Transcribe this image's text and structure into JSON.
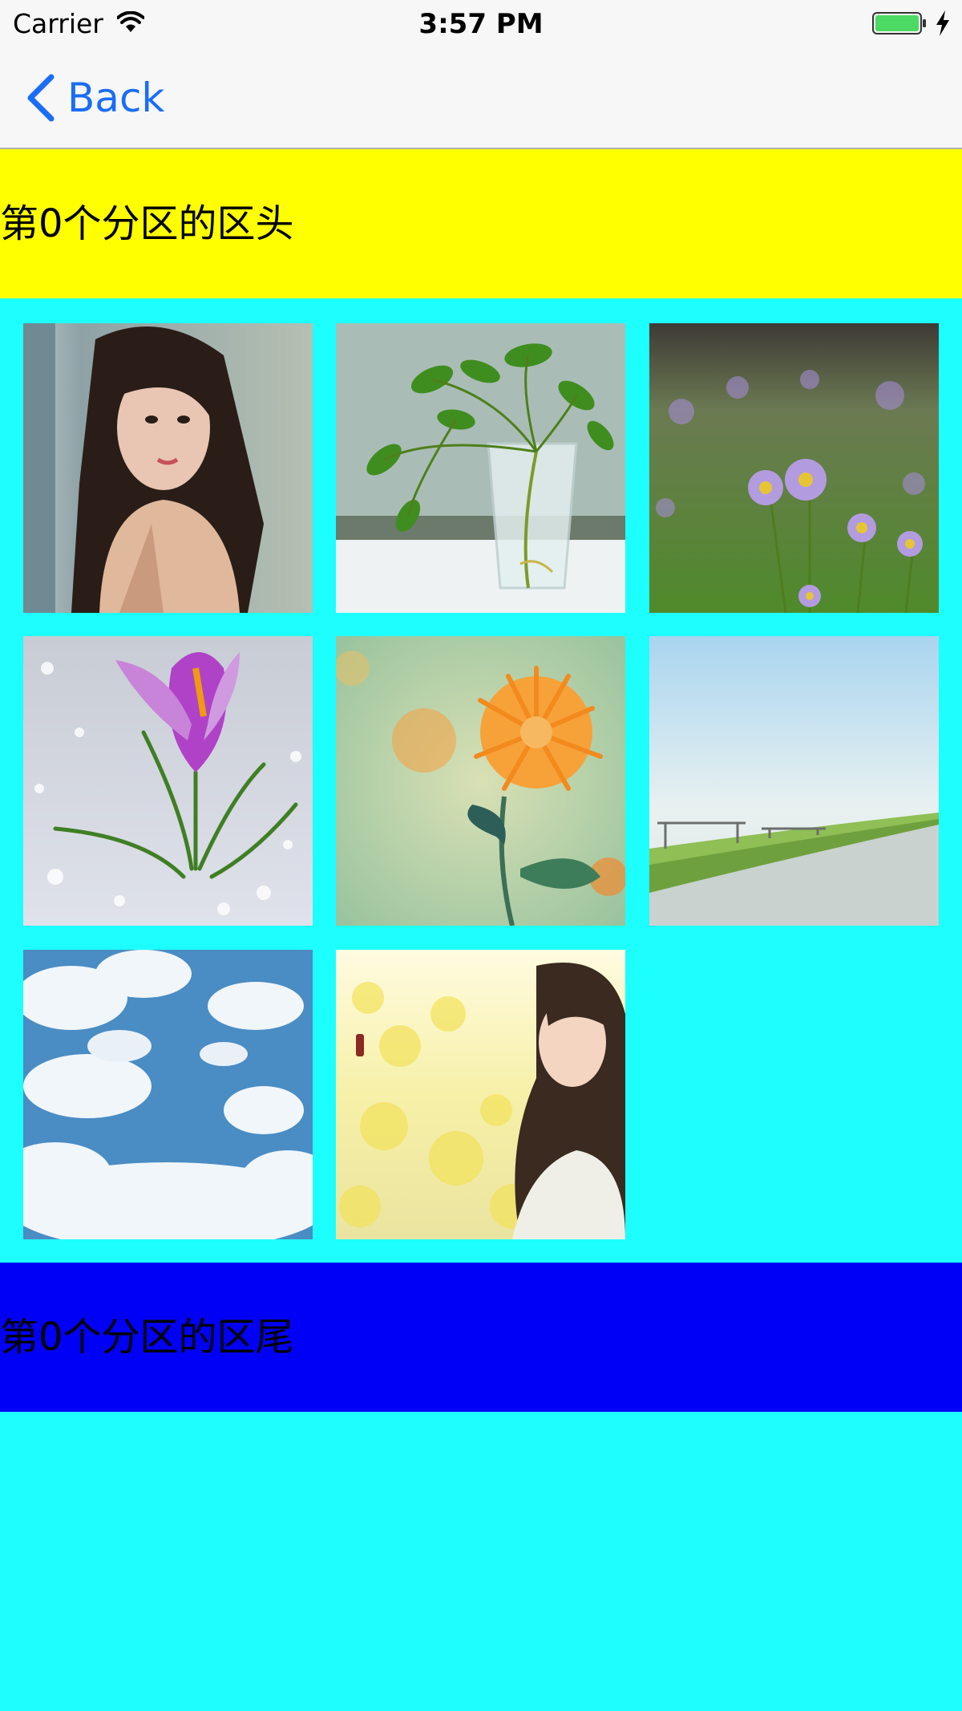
{
  "status_bar": {
    "carrier": "Carrier",
    "time": "3:57 PM",
    "wifi_icon": "wifi-icon",
    "battery_icon": "battery-icon",
    "battery_color": "#4cd964"
  },
  "nav_bar": {
    "back_label": "Back",
    "accent_color": "#1a6df5"
  },
  "section": {
    "header_text": "第0个分区的区头",
    "footer_text": "第0个分区的区尾",
    "header_color": "#ffff00",
    "footer_color": "#0000f7",
    "background_color": "#1dfffe"
  },
  "grid": {
    "items": [
      {
        "subject": "woman-portrait-photo"
      },
      {
        "subject": "plant-in-glass-vase-photo"
      },
      {
        "subject": "purple-daisies-field-photo"
      },
      {
        "subject": "purple-crocus-in-snow-photo"
      },
      {
        "subject": "orange-chrysanthemum-photo"
      },
      {
        "subject": "grass-path-sky-photo"
      },
      {
        "subject": "blue-sky-clouds-photo"
      },
      {
        "subject": "woman-in-yellow-flowers-photo"
      }
    ]
  }
}
